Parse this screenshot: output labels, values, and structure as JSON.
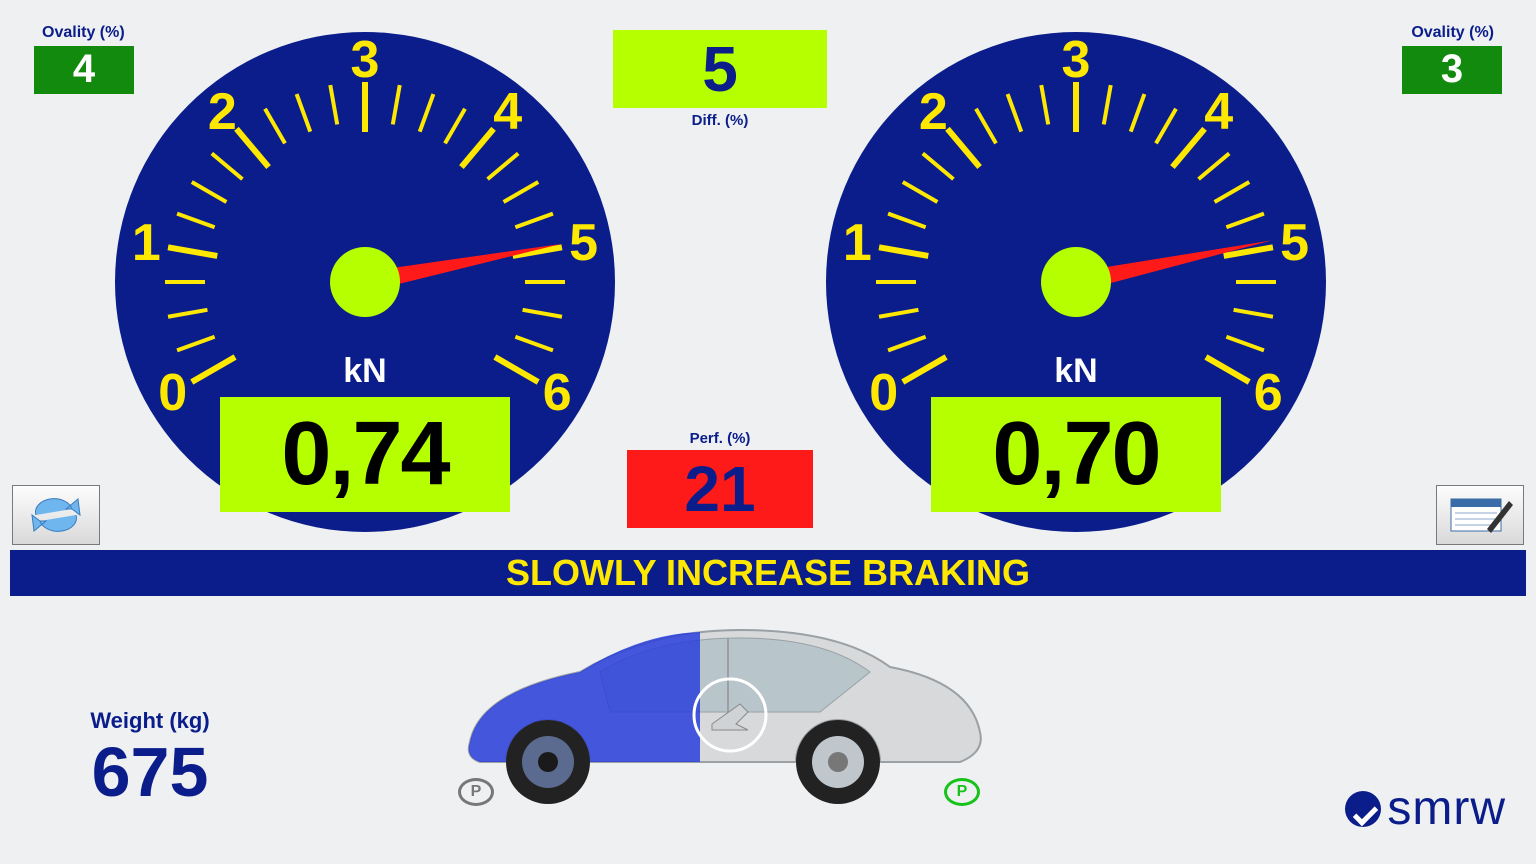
{
  "colors": {
    "bg": "#eef0f2",
    "gauge_face": "#0a1d8a",
    "gauge_scale": "#ffe800",
    "needle": "#ff1a1a",
    "readout_bg": "#b6ff00",
    "ovality_bg": "#118a0e",
    "perf_bg": "#ff1a1a",
    "status_bg": "#0a1d8a",
    "status_fg": "#ffe800",
    "brand": "#0a1d8a"
  },
  "ovality_left": {
    "label": "Ovality (%)",
    "value": "4"
  },
  "ovality_right": {
    "label": "Ovality (%)",
    "value": "3"
  },
  "diff": {
    "label": "Diff. (%)",
    "value": "5"
  },
  "perf": {
    "label": "Perf. (%)",
    "value": "21"
  },
  "status": "SLOWLY INCREASE BRAKING",
  "weight": {
    "label": "Weight (kg)",
    "value": "675"
  },
  "logo_text": "smrw",
  "gauge": {
    "unit": "kN",
    "min": 0,
    "max": 6,
    "scale_numbers": [
      "0",
      "1",
      "2",
      "3",
      "4",
      "5",
      "6"
    ],
    "start_angle_deg": 210,
    "end_angle_deg": -30,
    "needle_left_deg": 191,
    "needle_right_deg": 192
  },
  "left_readout": "0,74",
  "right_readout": "0,70",
  "park_badges": {
    "left_color": "#777777",
    "right_color": "#17c21a",
    "text": "P"
  }
}
